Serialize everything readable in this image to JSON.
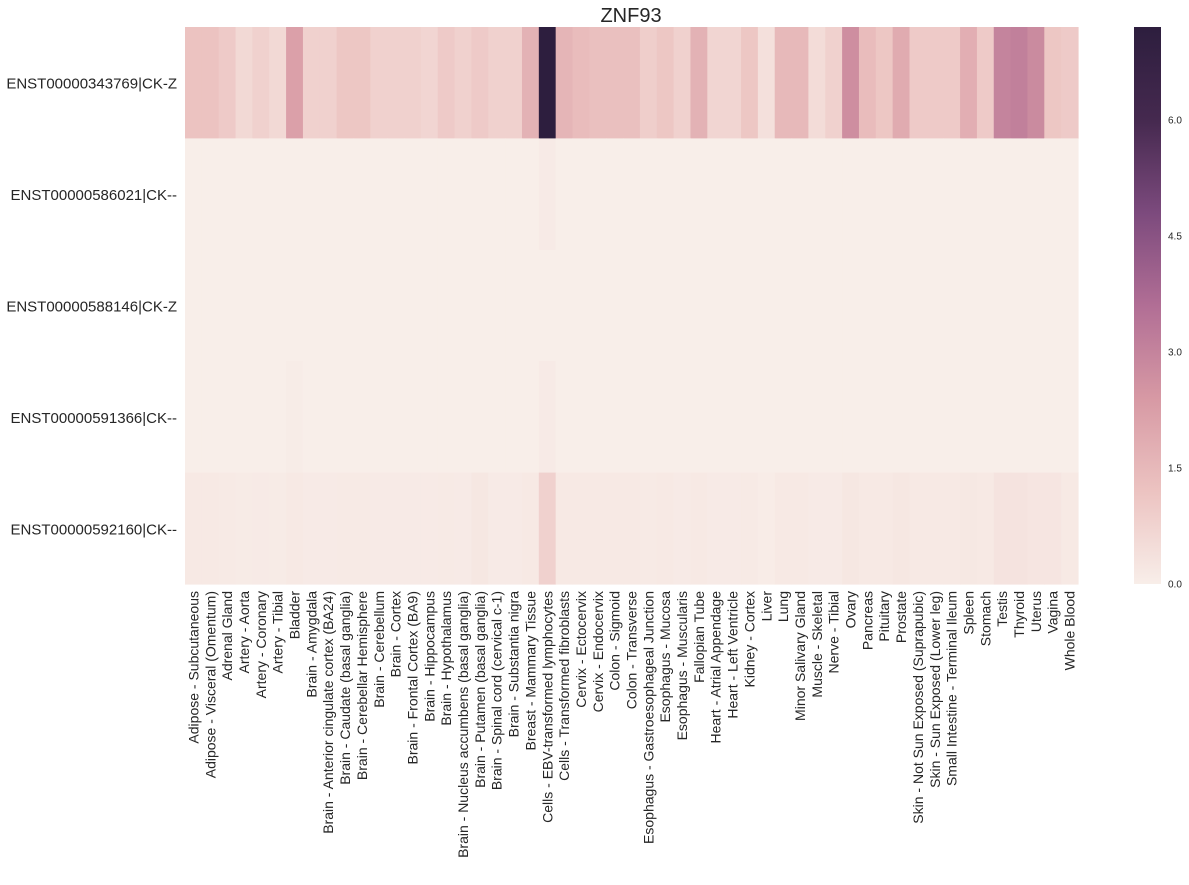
{
  "chart_data": {
    "type": "heatmap",
    "title": "ZNF93",
    "rows": [
      "ENST00000343769|CK-Z",
      "ENST00000586021|CK--",
      "ENST00000588146|CK-Z",
      "ENST00000591366|CK--",
      "ENST00000592160|CK--"
    ],
    "columns": [
      "Adipose - Subcutaneous",
      "Adipose - Visceral (Omentum)",
      "Adrenal Gland",
      "Artery - Aorta",
      "Artery - Coronary",
      "Artery - Tibial",
      "Bladder",
      "Brain - Amygdala",
      "Brain - Anterior cingulate cortex (BA24)",
      "Brain - Caudate (basal ganglia)",
      "Brain - Cerebellar Hemisphere",
      "Brain - Cerebellum",
      "Brain - Cortex",
      "Brain - Frontal Cortex (BA9)",
      "Brain - Hippocampus",
      "Brain - Hypothalamus",
      "Brain - Nucleus accumbens (basal ganglia)",
      "Brain - Putamen (basal ganglia)",
      "Brain - Spinal cord (cervical c-1)",
      "Brain - Substantia nigra",
      "Breast - Mammary Tissue",
      "Cells - EBV-transformed lymphocytes",
      "Cells - Transformed fibroblasts",
      "Cervix - Ectocervix",
      "Cervix - Endocervix",
      "Colon - Sigmoid",
      "Colon - Transverse",
      "Esophagus - Gastroesophageal Junction",
      "Esophagus - Mucosa",
      "Esophagus - Muscularis",
      "Fallopian Tube",
      "Heart - Atrial Appendage",
      "Heart - Left Ventricle",
      "Kidney - Cortex",
      "Liver",
      "Lung",
      "Minor Salivary Gland",
      "Muscle - Skeletal",
      "Nerve - Tibial",
      "Ovary",
      "Pancreas",
      "Pituitary",
      "Prostate",
      "Skin - Not Sun Exposed (Suprapubic)",
      "Skin - Sun Exposed (Lower leg)",
      "Small Intestine - Terminal Ileum",
      "Spleen",
      "Stomach",
      "Testis",
      "Thyroid",
      "Uterus",
      "Vagina",
      "Whole Blood"
    ],
    "values": [
      [
        1.2,
        1.2,
        1.0,
        0.6,
        0.8,
        0.6,
        2.2,
        0.8,
        0.8,
        1.1,
        1.1,
        0.8,
        0.8,
        0.8,
        0.7,
        1.0,
        0.8,
        1.0,
        0.8,
        0.8,
        1.7,
        7.2,
        1.6,
        1.4,
        1.3,
        1.3,
        1.3,
        0.9,
        1.1,
        0.8,
        1.7,
        0.7,
        0.7,
        1.1,
        0.4,
        1.5,
        1.5,
        0.5,
        0.8,
        2.7,
        1.4,
        1.1,
        1.9,
        1.0,
        1.0,
        1.0,
        1.8,
        1.0,
        3.0,
        3.1,
        2.8,
        1.1,
        1.0
      ],
      [
        0.0,
        0.0,
        0.0,
        0.0,
        0.0,
        0.0,
        0.0,
        0.0,
        0.0,
        0.0,
        0.0,
        0.0,
        0.0,
        0.0,
        0.0,
        0.0,
        0.0,
        0.0,
        0.0,
        0.0,
        0.0,
        0.1,
        0.0,
        0.0,
        0.0,
        0.0,
        0.0,
        0.0,
        0.0,
        0.0,
        0.0,
        0.0,
        0.0,
        0.0,
        0.0,
        0.0,
        0.0,
        0.0,
        0.0,
        0.0,
        0.0,
        0.0,
        0.0,
        0.0,
        0.0,
        0.0,
        0.0,
        0.0,
        0.0,
        0.0,
        0.0,
        0.0,
        0.0
      ],
      [
        0.0,
        0.0,
        0.0,
        0.0,
        0.0,
        0.0,
        0.0,
        0.0,
        0.0,
        0.0,
        0.0,
        0.0,
        0.0,
        0.0,
        0.0,
        0.0,
        0.0,
        0.0,
        0.0,
        0.0,
        0.0,
        0.0,
        0.0,
        0.0,
        0.0,
        0.0,
        0.0,
        0.0,
        0.0,
        0.0,
        0.0,
        0.0,
        0.0,
        0.0,
        0.0,
        0.0,
        0.0,
        0.0,
        0.0,
        0.0,
        0.0,
        0.0,
        0.0,
        0.0,
        0.0,
        0.0,
        0.0,
        0.0,
        0.0,
        0.0,
        0.0,
        0.0,
        0.0
      ],
      [
        0.0,
        0.0,
        0.0,
        0.0,
        0.0,
        0.0,
        0.06,
        0.0,
        0.0,
        0.0,
        0.0,
        0.0,
        0.0,
        0.0,
        0.0,
        0.0,
        0.0,
        0.0,
        0.0,
        0.0,
        0.0,
        0.1,
        0.0,
        0.0,
        0.0,
        0.0,
        0.0,
        0.0,
        0.0,
        0.0,
        0.0,
        0.0,
        0.0,
        0.0,
        0.0,
        0.0,
        0.0,
        0.0,
        0.0,
        0.0,
        0.0,
        0.0,
        0.0,
        0.0,
        0.0,
        0.0,
        0.0,
        0.0,
        0.0,
        0.0,
        0.0,
        0.0,
        0.0
      ],
      [
        0.15,
        0.15,
        0.12,
        0.08,
        0.1,
        0.08,
        0.15,
        0.1,
        0.1,
        0.12,
        0.12,
        0.1,
        0.1,
        0.1,
        0.1,
        0.12,
        0.1,
        0.2,
        0.1,
        0.1,
        0.15,
        0.8,
        0.15,
        0.15,
        0.15,
        0.15,
        0.15,
        0.12,
        0.15,
        0.1,
        0.15,
        0.1,
        0.1,
        0.12,
        0.05,
        0.15,
        0.15,
        0.1,
        0.1,
        0.2,
        0.15,
        0.15,
        0.2,
        0.15,
        0.15,
        0.15,
        0.18,
        0.15,
        0.3,
        0.3,
        0.25,
        0.25,
        0.15
      ]
    ],
    "vmin": 0.0,
    "vmax": 7.2,
    "colorbar_ticks": [
      "0.0",
      "1.5",
      "3.0",
      "4.5",
      "6.0"
    ],
    "colorbar_tick_values": [
      0.0,
      1.5,
      3.0,
      4.5,
      6.0
    ],
    "colormap_stops": [
      "#f8eee9",
      "#ecc3c1",
      "#d799a4",
      "#b16e95",
      "#7c4a7d",
      "#45294f",
      "#2d1e3e"
    ]
  }
}
